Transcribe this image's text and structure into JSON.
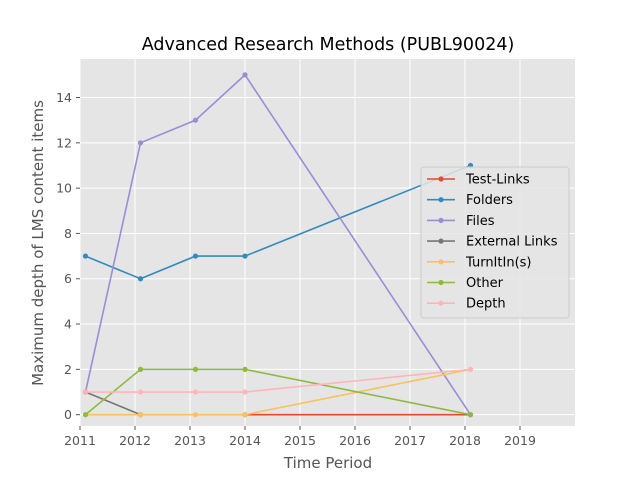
{
  "chart_data": {
    "type": "line",
    "title": "Advanced Research Methods (PUBL90024)",
    "xlabel": "Time Period",
    "ylabel": "Maximum depth of LMS content items",
    "xlim": [
      2011,
      2020
    ],
    "ylim": [
      -0.5,
      15.7
    ],
    "xticks": [
      2011,
      2012,
      2013,
      2014,
      2015,
      2016,
      2017,
      2018,
      2019
    ],
    "xtick_labels": [
      "2011",
      "2012",
      "2013",
      "2014",
      "2015",
      "2016",
      "2017",
      "2018",
      "2019"
    ],
    "yticks": [
      0,
      2,
      4,
      6,
      8,
      10,
      12,
      14
    ],
    "ytick_labels": [
      "0",
      "2",
      "4",
      "6",
      "8",
      "10",
      "12",
      "14"
    ],
    "grid": true,
    "legend_position": "center-right",
    "background": "#E5E5E5",
    "series": [
      {
        "name": "Test-Links",
        "color": "#E24A33",
        "x": [
          2014.0,
          2018.1
        ],
        "y": [
          0,
          0
        ]
      },
      {
        "name": "Folders",
        "color": "#348ABD",
        "x": [
          2011.1,
          2012.1,
          2013.1,
          2014.0,
          2018.1
        ],
        "y": [
          7,
          6,
          7,
          7,
          11
        ]
      },
      {
        "name": "Files",
        "color": "#988ED5",
        "x": [
          2011.1,
          2012.1,
          2013.1,
          2014.0,
          2018.1
        ],
        "y": [
          1,
          12,
          13,
          15,
          0
        ]
      },
      {
        "name": "External Links",
        "color": "#777777",
        "x": [
          2011.1,
          2012.1
        ],
        "y": [
          1,
          0
        ]
      },
      {
        "name": "TurnItIn(s)",
        "color": "#FBC15E",
        "x": [
          2011.1,
          2012.1,
          2013.1,
          2014.0,
          2018.1
        ],
        "y": [
          0,
          0,
          0,
          0,
          2
        ]
      },
      {
        "name": "Other",
        "color": "#8EBA42",
        "x": [
          2011.1,
          2012.1,
          2013.1,
          2014.0,
          2018.1
        ],
        "y": [
          0,
          2,
          2,
          2,
          0
        ]
      },
      {
        "name": "Depth",
        "color": "#FFB5B8",
        "x": [
          2011.1,
          2012.1,
          2013.1,
          2014.0,
          2018.1
        ],
        "y": [
          1,
          1,
          1,
          1,
          2
        ]
      }
    ]
  }
}
